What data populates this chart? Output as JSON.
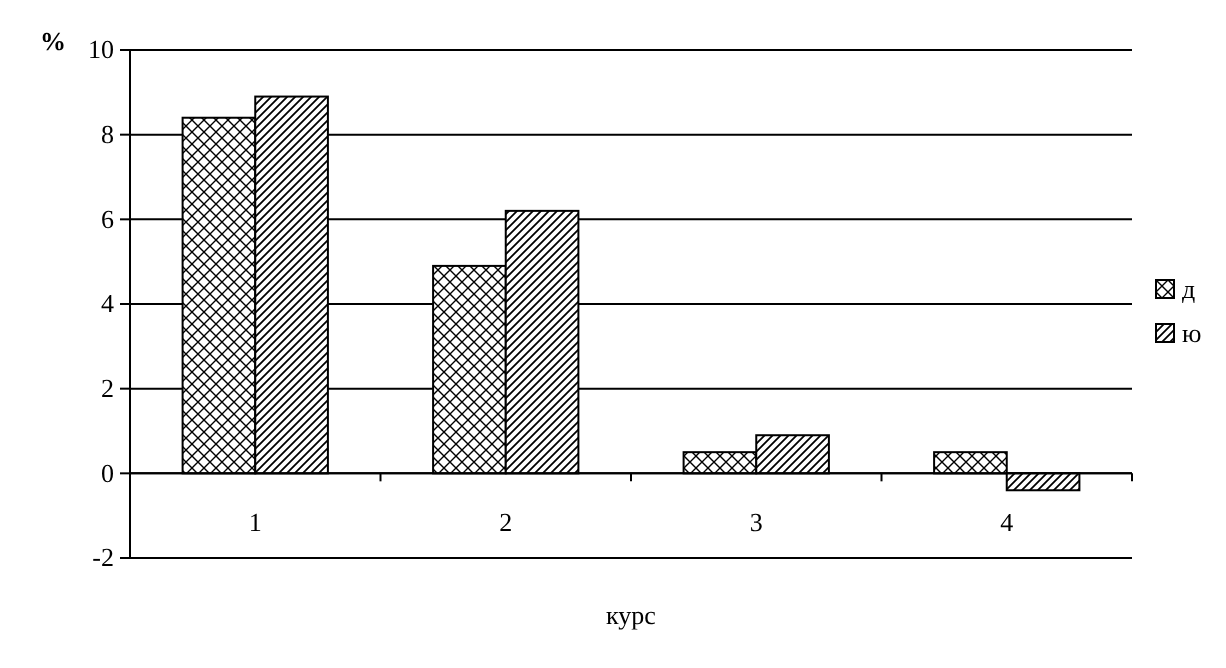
{
  "chart_data": {
    "type": "bar",
    "categories": [
      "1",
      "2",
      "3",
      "4"
    ],
    "series": [
      {
        "name": "д",
        "color": "#000000",
        "values": [
          8.4,
          4.9,
          0.5,
          0.5
        ]
      },
      {
        "name": "ю",
        "color": "#000000",
        "values": [
          8.9,
          6.2,
          0.9,
          -0.4
        ]
      }
    ],
    "xlabel": "курс",
    "ylabel": "%",
    "ylim": [
      -2,
      10
    ],
    "yticks": [
      -2,
      0,
      2,
      4,
      6,
      8,
      10
    ],
    "grid": "y",
    "legend": "right"
  }
}
